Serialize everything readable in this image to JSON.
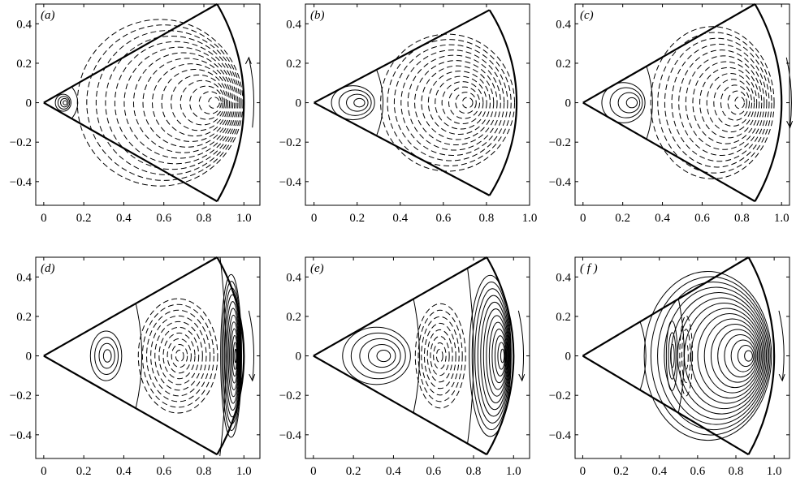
{
  "chart_data": {
    "type": "contour",
    "grid": false,
    "panels": [
      {
        "id": "a",
        "label": "(a)",
        "xlim": [
          -0.04,
          1.08
        ],
        "ylim": [
          -0.52,
          0.5
        ],
        "wedge_radius": 1.0,
        "x_ticks": [
          "0",
          "0.2",
          "0.4",
          "0.6",
          "0.8",
          "1.0"
        ],
        "y_ticks": [
          "0.4",
          "0.2",
          "0",
          "−0.2",
          "−0.4"
        ],
        "arrow_direction": "up",
        "regions": [
          {
            "sign": "positive",
            "line": "solid",
            "center_x": 0.11,
            "extent": [
              0.05,
              0.14
            ],
            "levels": 4
          },
          {
            "sign": "negative",
            "line": "dashed",
            "center_x": 0.87,
            "extent": [
              0.14,
              1.0
            ],
            "levels": 15
          }
        ]
      },
      {
        "id": "b",
        "label": "(b)",
        "xlim": [
          -0.04,
          1.0
        ],
        "ylim": [
          -0.52,
          0.5
        ],
        "wedge_radius": 0.94,
        "x_ticks": [
          "0",
          "0.2",
          "0.4",
          "0.6",
          "0.8",
          "1.0"
        ],
        "y_ticks": [
          "0.4",
          "0.2",
          "0",
          "−0.2",
          "−0.4"
        ],
        "arrow_direction": "none",
        "regions": [
          {
            "sign": "positive",
            "line": "solid",
            "center_x": 0.22,
            "extent": [
              0.06,
              0.29
            ],
            "levels": 4
          },
          {
            "sign": "negative",
            "line": "dashed",
            "center_x": 0.72,
            "extent": [
              0.29,
              0.94
            ],
            "levels": 13
          }
        ]
      },
      {
        "id": "c",
        "label": "(c)",
        "xlim": [
          -0.04,
          1.04
        ],
        "ylim": [
          -0.52,
          0.5
        ],
        "wedge_radius": 1.0,
        "x_ticks": [
          "0",
          "0.2",
          "0.4",
          "0.6",
          "0.8",
          "1.0"
        ],
        "y_ticks": [
          "0.4",
          "0.2",
          "0",
          "−0.2",
          "−0.4"
        ],
        "arrow_direction": "down",
        "regions": [
          {
            "sign": "positive",
            "line": "solid",
            "center_x": 0.26,
            "extent": [
              0.07,
              0.32
            ],
            "levels": 4
          },
          {
            "sign": "negative",
            "line": "dashed",
            "center_x": 0.8,
            "extent": [
              0.32,
              0.97
            ],
            "levels": 13
          }
        ]
      },
      {
        "id": "d",
        "label": "(d)",
        "xlim": [
          -0.04,
          1.08
        ],
        "ylim": [
          -0.52,
          0.5
        ],
        "wedge_radius": 1.0,
        "x_ticks": [
          "0",
          "0.2",
          "0.4",
          "0.6",
          "0.8",
          "1.0"
        ],
        "y_ticks": [
          "0.4",
          "0.2",
          "0",
          "−0.2",
          "−0.4"
        ],
        "arrow_direction": "down",
        "regions": [
          {
            "sign": "positive",
            "line": "solid",
            "center_x": 0.32,
            "extent": [
              0.22,
              0.4
            ],
            "levels": 4
          },
          {
            "sign": "negative",
            "line": "dashed",
            "center_x": 0.68,
            "extent": [
              0.46,
              0.88
            ],
            "levels": 10
          },
          {
            "sign": "positive",
            "line": "solid",
            "center_x": 0.96,
            "extent": [
              0.88,
              0.99
            ],
            "levels": 12
          }
        ]
      },
      {
        "id": "e",
        "label": "(e)",
        "xlim": [
          -0.04,
          1.08
        ],
        "ylim": [
          -0.52,
          0.5
        ],
        "wedge_radius": 1.0,
        "x_ticks": [
          "0",
          "0.2",
          "0.4",
          "0.6",
          "0.8",
          "1.0"
        ],
        "y_ticks": [
          "0.4",
          "0.2",
          "0",
          "−0.2",
          "−0.4"
        ],
        "arrow_direction": "down",
        "regions": [
          {
            "sign": "positive",
            "line": "solid",
            "center_x": 0.36,
            "extent": [
              0.12,
              0.5
            ],
            "levels": 5
          },
          {
            "sign": "negative",
            "line": "dashed",
            "center_x": 0.63,
            "extent": [
              0.5,
              0.77
            ],
            "levels": 8
          },
          {
            "sign": "positive",
            "line": "solid",
            "center_x": 0.95,
            "extent": [
              0.77,
              0.99
            ],
            "levels": 12
          }
        ]
      },
      {
        "id": "f",
        "label": "( f )",
        "xlim": [
          -0.04,
          1.08
        ],
        "ylim": [
          -0.52,
          0.5
        ],
        "wedge_radius": 1.0,
        "x_ticks": [
          "0",
          "0.2",
          "0.4",
          "0.6",
          "0.8",
          "1.0"
        ],
        "y_ticks": [
          "0.4",
          "0.2",
          "0",
          "−0.2",
          "−0.4"
        ],
        "arrow_direction": "down",
        "regions": [
          {
            "sign": "positive",
            "line": "solid",
            "center_x": 0.47,
            "extent": [
              0.43,
              0.5
            ],
            "levels": 3
          },
          {
            "sign": "negative",
            "line": "dashed",
            "center_x": 0.54,
            "extent": [
              0.5,
              0.58
            ],
            "levels": 3
          },
          {
            "sign": "positive",
            "line": "solid",
            "center_x": 0.88,
            "extent": [
              0.3,
              0.99
            ],
            "levels": 16
          }
        ]
      }
    ]
  }
}
